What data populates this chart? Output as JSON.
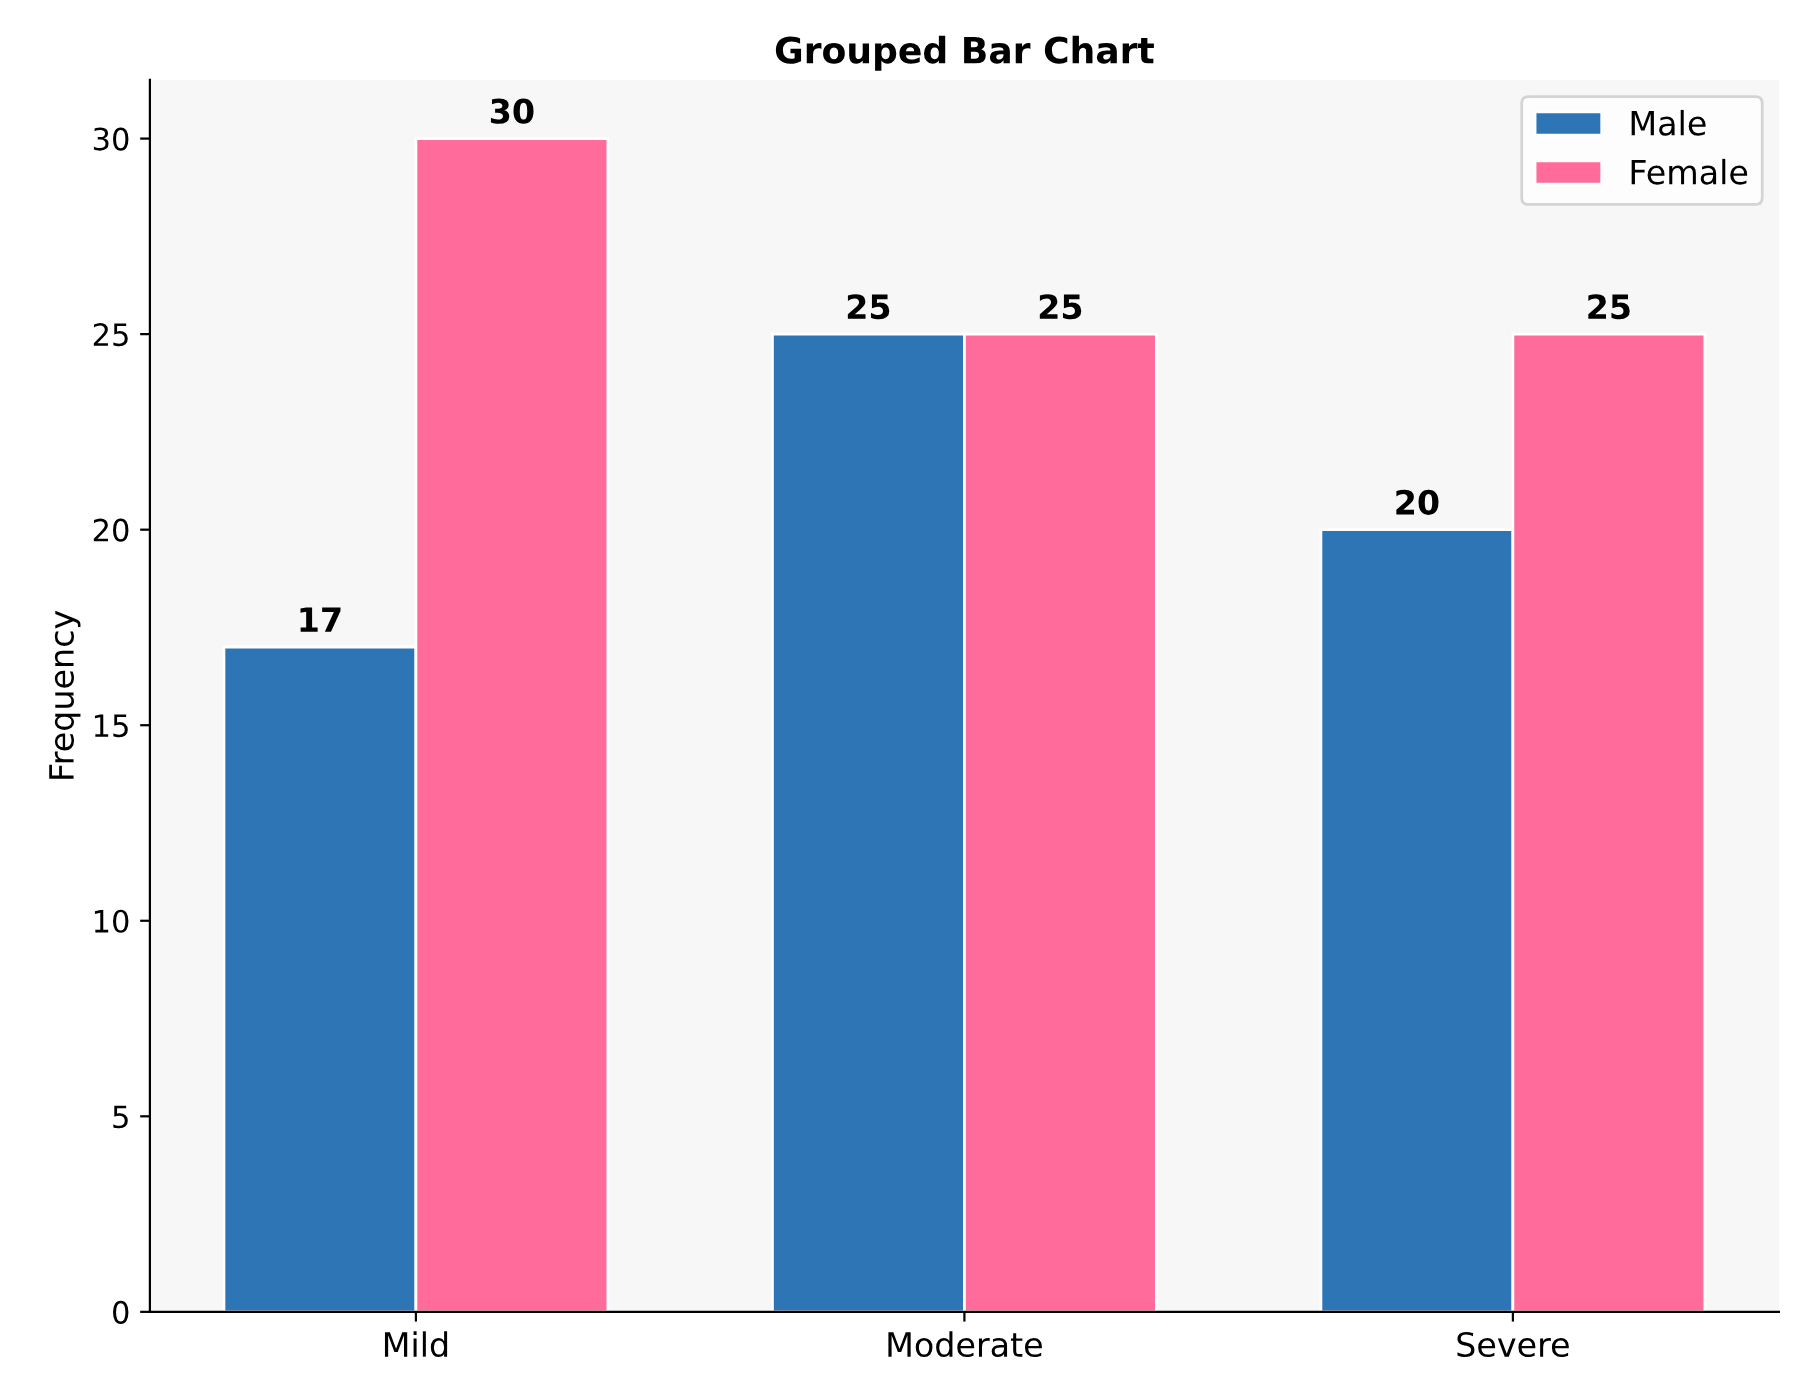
{
  "chart_data": {
    "type": "bar",
    "title": "Grouped Bar Chart",
    "ylabel": "Frequency",
    "categories": [
      "Mild",
      "Moderate",
      "Severe"
    ],
    "series": [
      {
        "name": "Male",
        "color": "#2e75b6",
        "values": [
          17,
          25,
          20
        ]
      },
      {
        "name": "Female",
        "color": "#ff6b9a",
        "values": [
          30,
          25,
          25
        ]
      }
    ],
    "ylim": [
      0,
      31.5
    ],
    "yticks": [
      0,
      5,
      10,
      15,
      20,
      25,
      30
    ],
    "grid": false,
    "legend": "top right",
    "data_labels": true
  }
}
